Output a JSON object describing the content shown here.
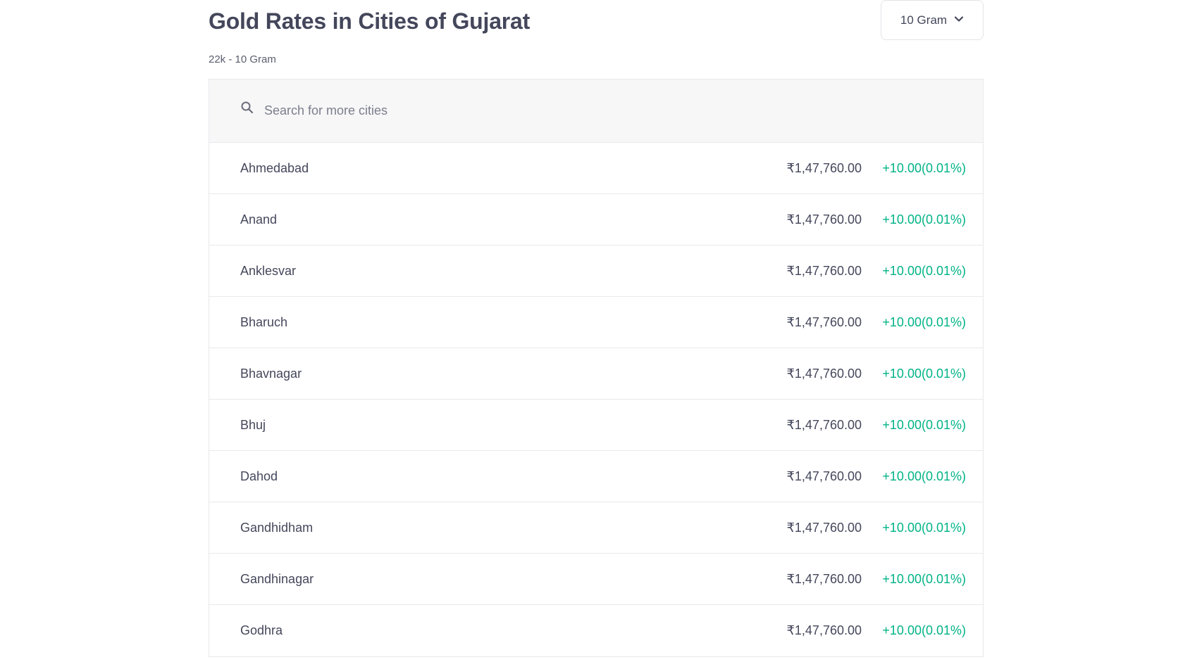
{
  "header": {
    "title": "Gold Rates in Cities of Gujarat",
    "subtitle": "22k - 10 Gram",
    "unit_select": {
      "selected": "10 Gram",
      "icon": "chevron-down-icon"
    }
  },
  "search": {
    "icon": "search-icon",
    "placeholder": "Search for more cities",
    "value": ""
  },
  "rows": [
    {
      "city": "Ahmedabad",
      "price": "₹1,47,760.00",
      "change": "+10.00(0.01%)"
    },
    {
      "city": "Anand",
      "price": "₹1,47,760.00",
      "change": "+10.00(0.01%)"
    },
    {
      "city": "Anklesvar",
      "price": "₹1,47,760.00",
      "change": "+10.00(0.01%)"
    },
    {
      "city": "Bharuch",
      "price": "₹1,47,760.00",
      "change": "+10.00(0.01%)"
    },
    {
      "city": "Bhavnagar",
      "price": "₹1,47,760.00",
      "change": "+10.00(0.01%)"
    },
    {
      "city": "Bhuj",
      "price": "₹1,47,760.00",
      "change": "+10.00(0.01%)"
    },
    {
      "city": "Dahod",
      "price": "₹1,47,760.00",
      "change": "+10.00(0.01%)"
    },
    {
      "city": "Gandhidham",
      "price": "₹1,47,760.00",
      "change": "+10.00(0.01%)"
    },
    {
      "city": "Gandhinagar",
      "price": "₹1,47,760.00",
      "change": "+10.00(0.01%)"
    },
    {
      "city": "Godhra",
      "price": "₹1,47,760.00",
      "change": "+10.00(0.01%)"
    }
  ],
  "colors": {
    "positive_change": "#00b386",
    "text": "#44475b",
    "search_bg": "#f7f7f8"
  }
}
